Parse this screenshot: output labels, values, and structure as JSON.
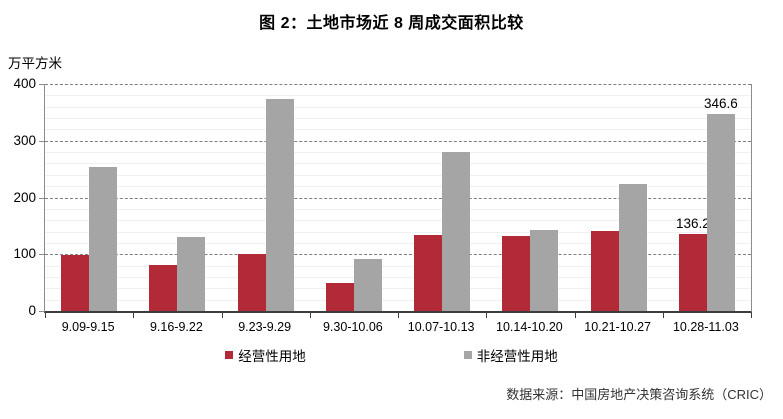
{
  "chart_data": {
    "type": "bar",
    "title": "图 2：土地市场近 8 周成交面积比较",
    "ylabel": "万平方米",
    "xlabel": "",
    "ylim": [
      0,
      400
    ],
    "yticks": [
      0,
      100,
      200,
      300,
      400
    ],
    "minor_unit": 20,
    "grid": {
      "major": "dashed",
      "minor": "light-solid"
    },
    "legend_position": "bottom",
    "categories": [
      "9.09-9.15",
      "9.16-9.22",
      "9.23-9.29",
      "9.30-10.06",
      "10.07-10.13",
      "10.14-10.20",
      "10.21-10.27",
      "10.28-11.03"
    ],
    "series": [
      {
        "name": "经营性用地",
        "color": "#B22A38",
        "values": [
          98,
          81,
          100,
          49,
          134,
          132,
          141,
          136.2
        ],
        "point_labels": [
          "",
          "",
          "",
          "",
          "",
          "",
          "",
          "136.2"
        ]
      },
      {
        "name": "非经营性用地",
        "color": "#A5A5A5",
        "values": [
          254,
          130,
          374,
          91,
          280,
          142,
          224,
          346.6
        ],
        "point_labels": [
          "",
          "",
          "",
          "",
          "",
          "",
          "",
          "346.6"
        ]
      }
    ]
  },
  "footer": {
    "source": "数据来源：中国房地产决策咨询系统（CRIC）"
  },
  "style_colors": {
    "axis_line": "#3d3d3d",
    "plot_border": "#8c8c8c",
    "major_gridline": "#7f7f7f",
    "minor_gridline": "#f0f0f0"
  }
}
